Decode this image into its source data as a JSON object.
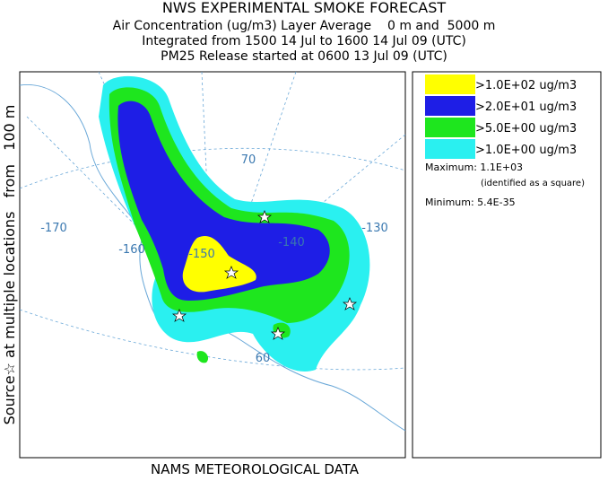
{
  "header": {
    "title": "NWS EXPERIMENTAL SMOKE FORECAST",
    "lines": [
      "Air Concentration (ug/m3) Layer Average    0 m and  5000 m",
      "Integrated from 1500 14 Jul to 1600 14 Jul 09 (UTC)",
      "PM25 Release started at 0600 13 Jul 09 (UTC)"
    ]
  },
  "side_label": "Source☆ at multiple locations   from   100 m",
  "footer": "NAMS METEOROLOGICAL DATA",
  "map": {
    "labels": [
      "-170",
      "-160",
      "-150",
      "-140",
      "-130",
      "70",
      "60"
    ]
  },
  "legend": {
    "entries": [
      {
        "label": ">1.0E+02 ug/m3",
        "color": "#ffff00"
      },
      {
        "label": ">2.0E+01 ug/m3",
        "color": "#1e1ee6"
      },
      {
        "label": ">5.0E+00 ug/m3",
        "color": "#1ee61e"
      },
      {
        "label": ">1.0E+00 ug/m3",
        "color": "#2af0f0"
      }
    ],
    "maximum": "Maximum: 1.1E+03",
    "maximum_note": "(identified as a square)",
    "minimum": "Minimum: 5.4E-35"
  }
}
